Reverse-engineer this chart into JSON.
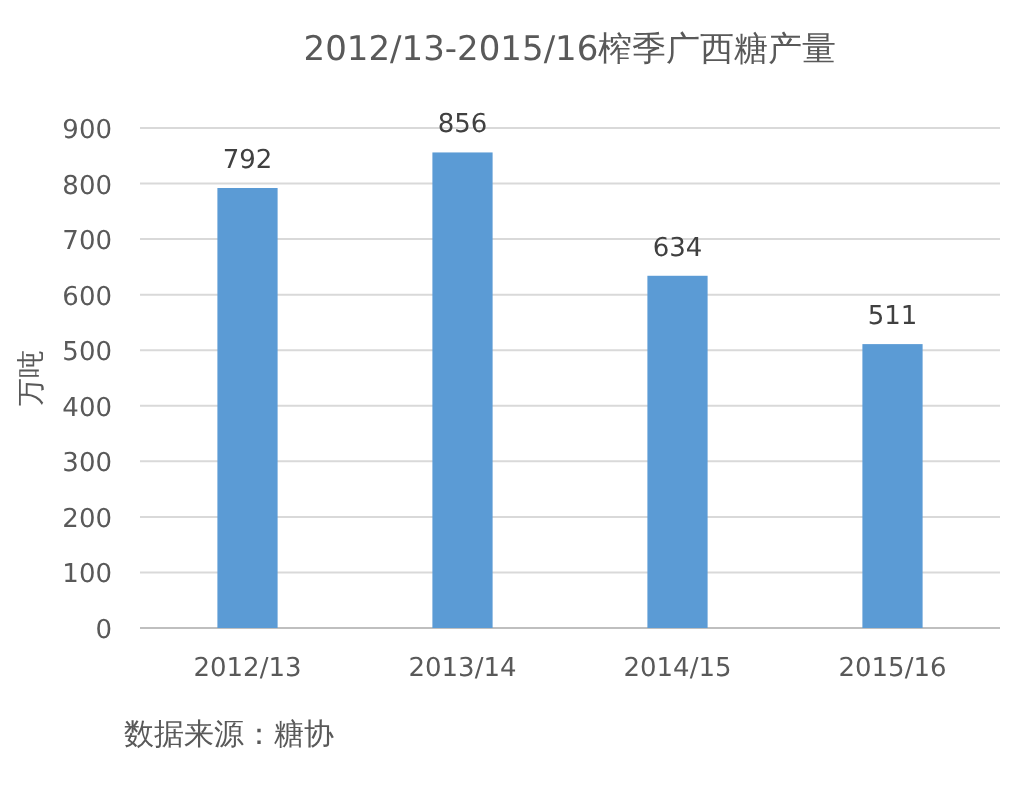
{
  "chart_data": {
    "type": "bar",
    "title": "2012/13-2015/16榨季广西糖产量",
    "ylabel": "万吨",
    "categories": [
      "2012/13",
      "2013/14",
      "2014/15",
      "2015/16"
    ],
    "values": [
      792,
      856,
      634,
      511
    ],
    "color": "#5b9bd5",
    "ylim": [
      0,
      900
    ],
    "yticks": [
      0,
      100,
      200,
      300,
      400,
      500,
      600,
      700,
      800,
      900
    ],
    "grid": "y",
    "data_labels": true,
    "annotations": [
      "数据来源：糖协"
    ]
  }
}
